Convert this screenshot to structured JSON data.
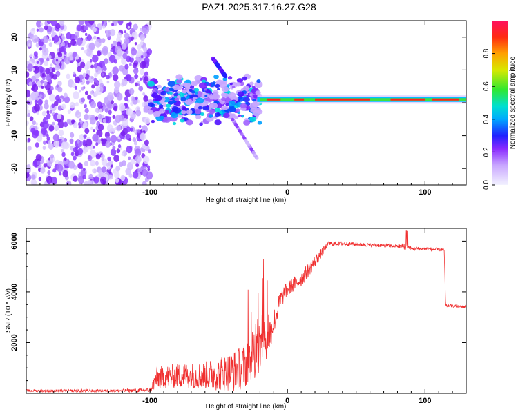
{
  "title": "PAZ1.2025.317.16.27.G28",
  "colors": {
    "spec_bg": "#ffffff",
    "snr_line": "#f03030"
  },
  "chart_data": [
    {
      "type": "heatmap",
      "name": "spectrogram",
      "xlabel": "Height of straight line (km)",
      "ylabel": "Frequency (Hz)",
      "xlim": [
        -190,
        130
      ],
      "ylim": [
        -25,
        25
      ],
      "xticks": [
        -100,
        0,
        100
      ],
      "yticks": [
        -20,
        -10,
        0,
        10,
        20
      ],
      "xtick_labels": [
        "-100",
        "0",
        "100"
      ],
      "ytick_labels": [
        "-20",
        "-10",
        "0",
        "10",
        "20"
      ],
      "colorbar": {
        "label": "Normalized spectral amplitude",
        "range": [
          0,
          1
        ],
        "ticks": [
          0.0,
          0.2,
          0.4,
          0.6,
          0.8
        ],
        "tick_labels": [
          "0.0",
          "0.2",
          "0.4",
          "0.6",
          "0.8"
        ]
      },
      "features": [
        {
          "desc": "noise blobs",
          "x_range": [
            -190,
            -100
          ],
          "y_range": [
            -25,
            25
          ],
          "amplitude": 0.05
        },
        {
          "desc": "noise blobs",
          "x_range": [
            -100,
            -20
          ],
          "y_range": [
            -8,
            10
          ],
          "amplitude": 0.1
        },
        {
          "desc": "tone line",
          "x_range": [
            -20,
            130
          ],
          "y_center": 1,
          "amplitude": 0.9
        }
      ]
    },
    {
      "type": "line",
      "name": "snr",
      "xlabel": "Height of straight line (km)",
      "ylabel": "SNR (10 * v/v)",
      "xlim": [
        -190,
        130
      ],
      "ylim": [
        0,
        6500
      ],
      "xticks": [
        -100,
        0,
        100
      ],
      "yticks": [
        2000,
        4000,
        6000
      ],
      "xtick_labels": [
        "-100",
        "0",
        "100"
      ],
      "ytick_labels": [
        "2000",
        "4000",
        "6000"
      ],
      "series": [
        {
          "name": "SNR",
          "x": [
            -190,
            -160,
            -130,
            -100,
            -95,
            -80,
            -60,
            -40,
            -30,
            -25,
            -20,
            -15,
            -10,
            -5,
            0,
            5,
            10,
            20,
            30,
            40,
            60,
            80,
            86,
            90,
            100,
            114,
            115,
            120,
            130
          ],
          "y": [
            100,
            100,
            100,
            120,
            600,
            700,
            700,
            850,
            1100,
            1500,
            1600,
            2000,
            2800,
            3700,
            4100,
            4300,
            4500,
            5200,
            5900,
            5900,
            5850,
            5800,
            5800,
            5700,
            5700,
            5650,
            3450,
            3450,
            3400
          ],
          "noise": [
            50,
            50,
            50,
            80,
            450,
            500,
            550,
            800,
            900,
            1000,
            1000,
            800,
            500,
            400,
            300,
            300,
            300,
            250,
            100,
            80,
            70,
            70,
            150,
            80,
            70,
            70,
            60,
            60,
            60
          ]
        }
      ]
    }
  ]
}
